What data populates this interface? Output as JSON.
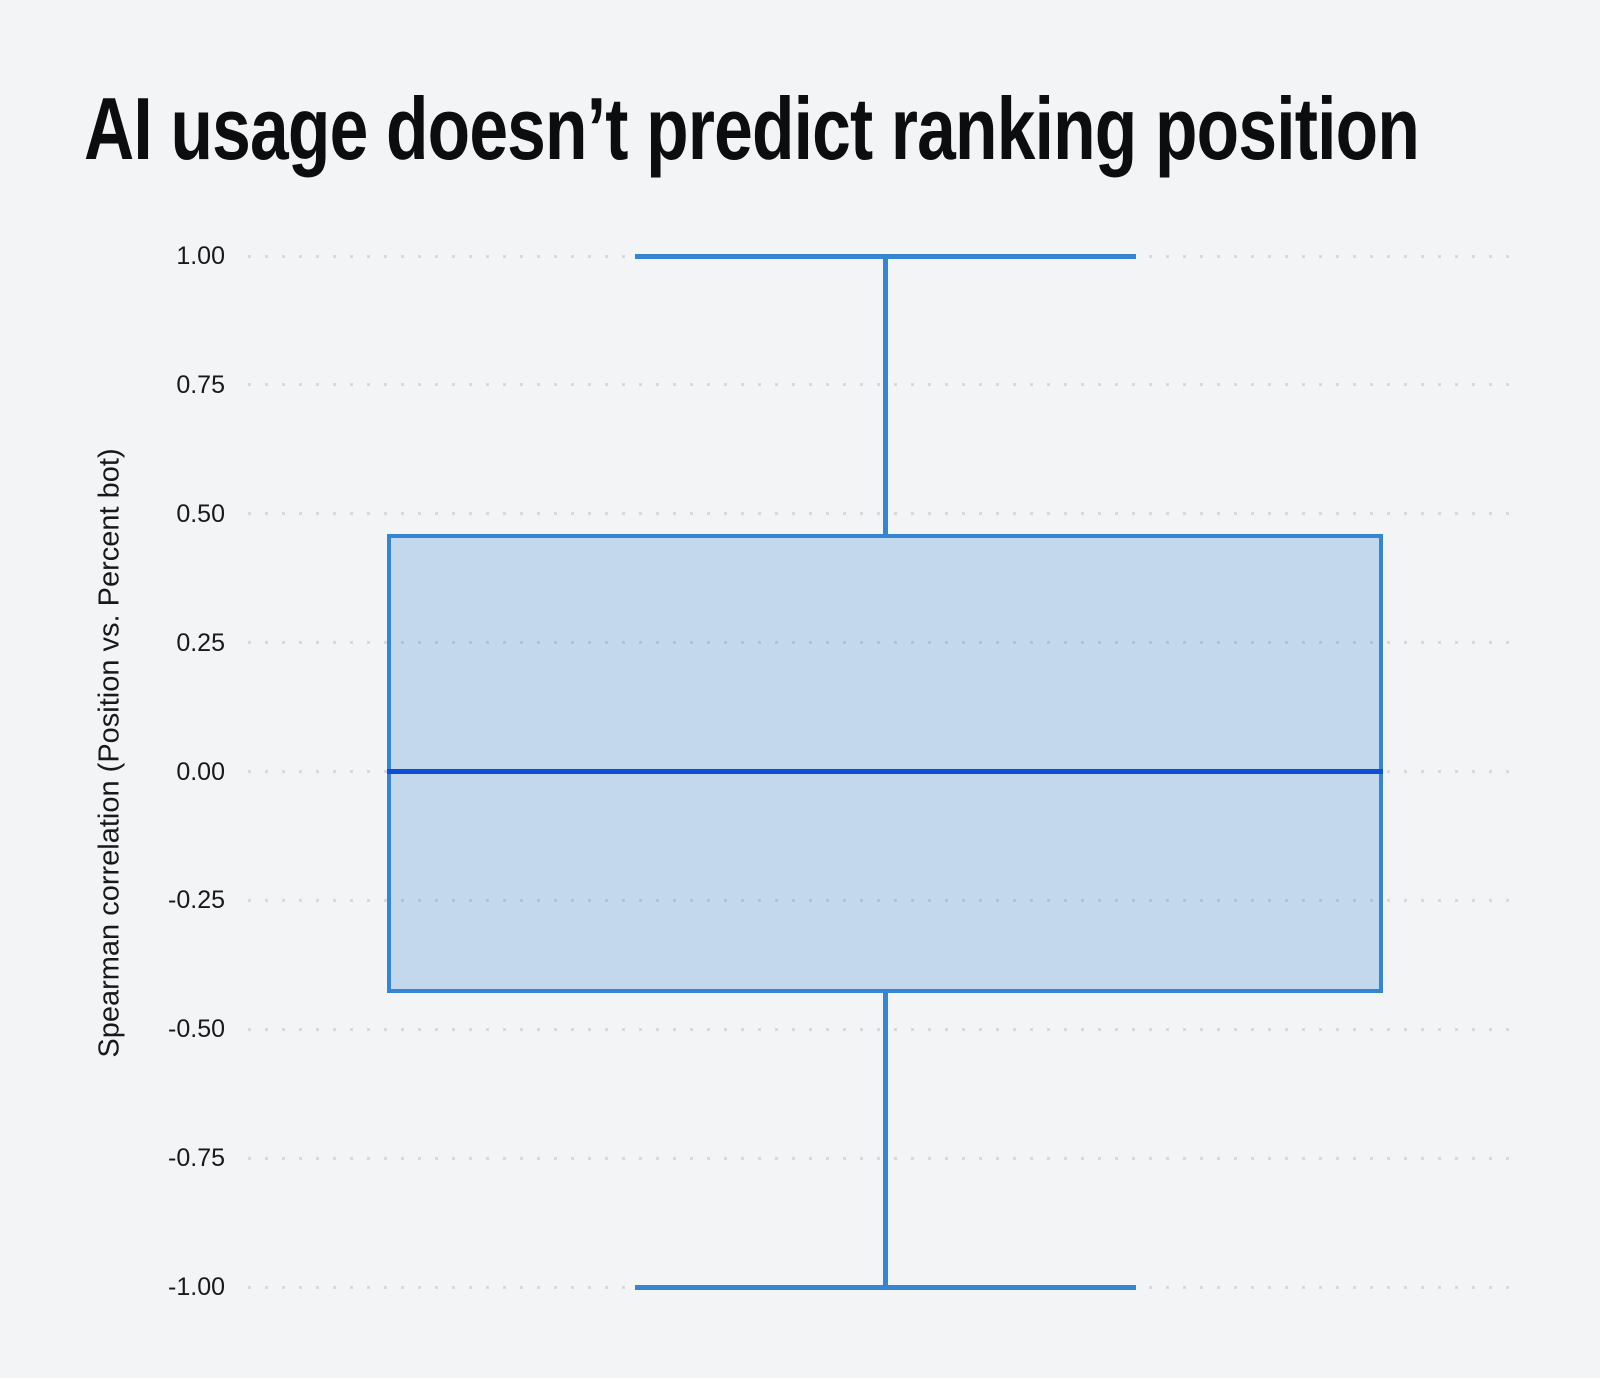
{
  "chart_data": {
    "type": "boxplot",
    "title": "AI usage doesn’t predict ranking position",
    "ylabel": "Spearman correlation (Position vs. Percent bot)",
    "xlabel": "",
    "ylim": [
      -1.0,
      1.0
    ],
    "yticks": [
      1.0,
      0.75,
      0.5,
      0.25,
      0.0,
      -0.25,
      -0.5,
      -0.75,
      -1.0
    ],
    "ytick_labels": [
      "1.00",
      "0.75",
      "0.50",
      "0.25",
      "0.00",
      "-0.25",
      "-0.50",
      "-0.75",
      "-1.00"
    ],
    "grid": "horizontal-dotted",
    "legend": "none",
    "series": [
      {
        "name": "Spearman correlation (Position vs. Percent bot)",
        "whisker_low": -1.0,
        "q1": -0.43,
        "median": 0.0,
        "q3": 0.46,
        "whisker_high": 1.0,
        "outliers": []
      }
    ],
    "colors": {
      "background": "#f3f4f6",
      "box_border": "#3585d2",
      "box_fill_rgba": "rgba(53,133,210,0.25)",
      "median_line": "#0d50d6",
      "grid_dot": "#d7d9dc",
      "title_text": "#0c0d0f",
      "axis_text": "#17191c"
    }
  }
}
